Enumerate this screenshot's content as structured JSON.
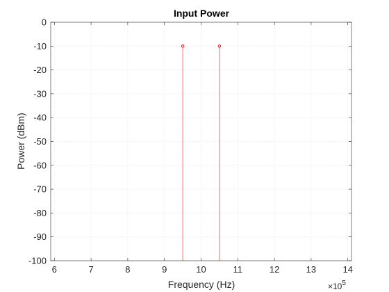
{
  "chart_data": {
    "type": "stem",
    "title": "Input Power",
    "xlabel": "Frequency (Hz)",
    "ylabel": "Power (dBm)",
    "x_exponent_label": "×10",
    "x_exponent_power": "5",
    "xlim": [
      5.9,
      14.1
    ],
    "ylim": [
      -100,
      0
    ],
    "xticks": [
      6,
      7,
      8,
      9,
      10,
      11,
      12,
      13,
      14
    ],
    "yticks": [
      0,
      -10,
      -20,
      -30,
      -40,
      -50,
      -60,
      -70,
      -80,
      -90,
      -100
    ],
    "grid": true,
    "series": [
      {
        "color": "#ff0000",
        "x": [
          9.5,
          10.5
        ],
        "y": [
          -10,
          -10
        ]
      }
    ]
  }
}
